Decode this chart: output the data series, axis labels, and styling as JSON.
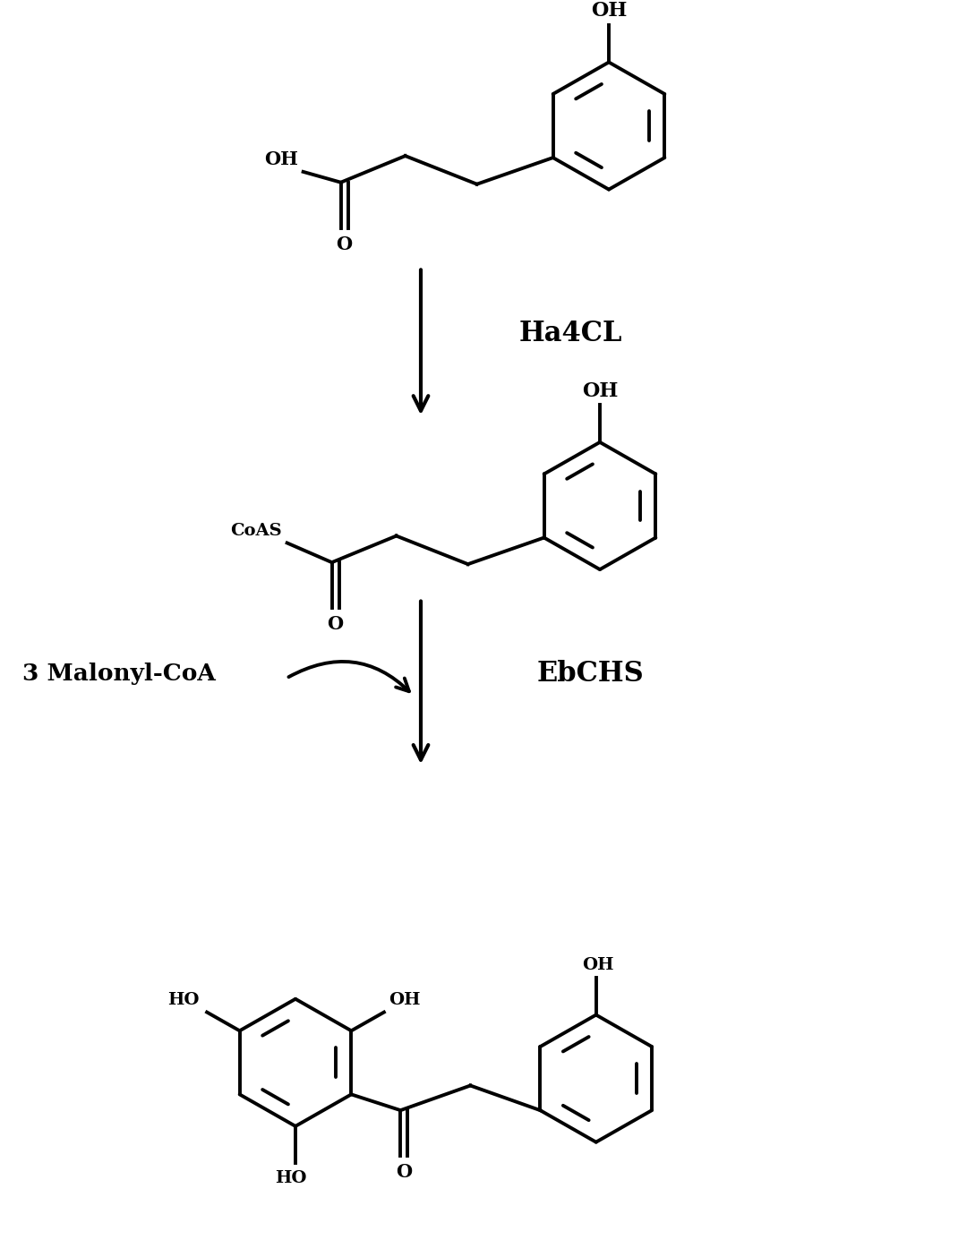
{
  "background_color": "#ffffff",
  "lw": 2.8,
  "lc": "#000000",
  "figsize": [
    10.7,
    14.04
  ],
  "dpi": 100,
  "ha4cl_label": "Ha4CL",
  "ebchs_label": "EbCHS",
  "malonyl_label": "3 Malonyl-CoA"
}
